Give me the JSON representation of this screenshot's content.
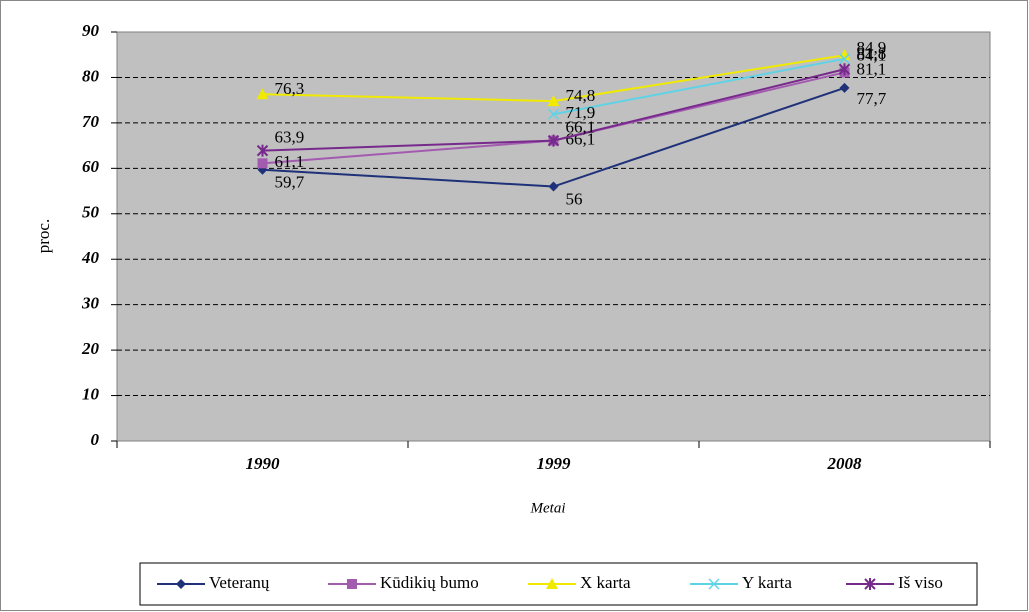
{
  "chart_data": {
    "type": "line",
    "categories": [
      "1990",
      "1999",
      "2008"
    ],
    "x_label": "Metai",
    "y_label": "proc.",
    "ylim": [
      0,
      90
    ],
    "yticks": [
      0,
      10,
      20,
      30,
      40,
      50,
      60,
      70,
      80,
      90
    ],
    "grid": true,
    "legend": "bottom",
    "series": [
      {
        "name": "Veteranų",
        "color": "#1f3178",
        "marker": "diamond",
        "values": [
          59.7,
          56,
          77.7
        ],
        "value_labels": [
          "59,7",
          "56",
          "77,7"
        ]
      },
      {
        "name": "Kūdikių bumo",
        "color": "#a35bb0",
        "marker": "square",
        "values": [
          61.1,
          66.1,
          81.1
        ],
        "value_labels": [
          "61,1",
          "66,1",
          "81,1"
        ]
      },
      {
        "name": "X karta",
        "color": "#f0ea00",
        "marker": "triangle",
        "values": [
          76.3,
          74.8,
          84.9
        ],
        "value_labels": [
          "76,3",
          "74,8",
          "84,9"
        ]
      },
      {
        "name": "Y karta",
        "color": "#5fd3e6",
        "marker": "x",
        "values": [
          null,
          71.9,
          84.1
        ],
        "value_labels": [
          null,
          "71,9",
          "84,1"
        ]
      },
      {
        "name": "Iš viso",
        "color": "#772a8c",
        "marker": "star",
        "values": [
          63.9,
          66.1,
          81.8
        ],
        "value_labels": [
          "63,9",
          "66,1",
          "81,8"
        ]
      }
    ]
  }
}
